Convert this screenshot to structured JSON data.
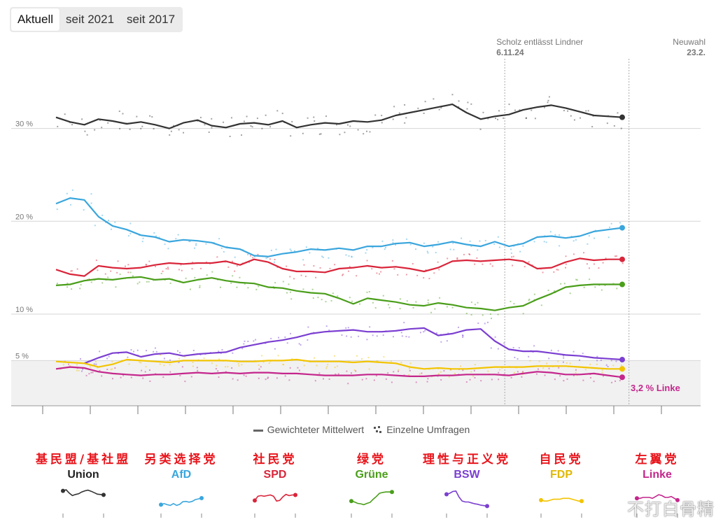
{
  "tabs": [
    {
      "label": "Aktuell",
      "active": true
    },
    {
      "label": "seit 2021",
      "active": false
    },
    {
      "label": "seit 2017",
      "active": false
    }
  ],
  "annotations": {
    "event1_title": "Scholz entlässt Lindner",
    "event1_date": "6.11.24",
    "event2_title": "Neuwahl",
    "event2_date": "23.2."
  },
  "legend": {
    "mean_label": "Gewichteter Mittelwert",
    "polls_label": "Einzelne Umfragen"
  },
  "parties": [
    {
      "key": "union",
      "cn": "基民盟/基社盟",
      "de": "Union",
      "color": "#333333"
    },
    {
      "key": "afd",
      "cn": "另类选择党",
      "de": "AfD",
      "color": "#3aa6dd"
    },
    {
      "key": "spd",
      "cn": "社民党",
      "de": "SPD",
      "color": "#d9253a"
    },
    {
      "key": "gruene",
      "cn": "绿党",
      "de": "Grüne",
      "color": "#4a9e1a"
    },
    {
      "key": "bsw",
      "cn": "理性与正义党",
      "de": "BSW",
      "color": "#7b3fd1"
    },
    {
      "key": "fdp",
      "cn": "自民党",
      "de": "FDP",
      "color": "#f2c400"
    },
    {
      "key": "linke",
      "cn": "左翼党",
      "de": "Linke",
      "color": "#c4268c"
    }
  ],
  "watermark": "不打白骨精",
  "chart_data": {
    "type": "line",
    "x": [
      0,
      1,
      2,
      3,
      4,
      5,
      6,
      7,
      8,
      9,
      10,
      11,
      12,
      13,
      14,
      15,
      16,
      17,
      18,
      19,
      20,
      21,
      22,
      23,
      24,
      25,
      26,
      27,
      28,
      29,
      30,
      31,
      32,
      33,
      34,
      35,
      36,
      37,
      38,
      39,
      40
    ],
    "yticks": [
      {
        "value": 30,
        "label": "30 %"
      },
      {
        "value": 20,
        "label": "20 %"
      },
      {
        "value": 10,
        "label": "10 %"
      },
      {
        "value": 5,
        "label": "5 %"
      }
    ],
    "ylim": [
      0,
      37
    ],
    "threshold_band": {
      "from": 0,
      "to": 5
    },
    "end_label": {
      "text": "3,2 % Linke",
      "series": "linke"
    },
    "events": [
      {
        "at_index": 32,
        "label_key": "event1"
      },
      {
        "at_index": 38.5,
        "label_key": "event2"
      }
    ],
    "series": [
      {
        "name": "Union",
        "color": "#333333",
        "values": [
          31.2,
          30.7,
          30.4,
          31.0,
          30.8,
          30.5,
          30.7,
          30.4,
          30.0,
          30.6,
          30.9,
          30.3,
          30.1,
          30.5,
          30.6,
          30.4,
          30.8,
          30.1,
          30.4,
          30.6,
          30.5,
          30.8,
          30.7,
          30.9,
          31.4,
          31.7,
          32.0,
          32.3,
          32.6,
          31.7,
          31.0,
          31.3,
          31.5,
          32.0,
          32.3,
          32.5,
          32.2,
          31.8,
          31.4,
          31.3,
          31.2
        ]
      },
      {
        "name": "AfD",
        "color": "#3aa6dd",
        "values": [
          21.9,
          22.5,
          22.3,
          20.5,
          19.5,
          19.1,
          18.5,
          18.3,
          17.8,
          18.0,
          17.9,
          17.7,
          17.2,
          17.0,
          16.3,
          16.2,
          16.5,
          16.7,
          17.0,
          16.9,
          17.1,
          16.9,
          17.3,
          17.3,
          17.6,
          17.7,
          17.3,
          17.5,
          17.8,
          17.5,
          17.3,
          17.8,
          17.3,
          17.6,
          18.3,
          18.4,
          18.2,
          18.4,
          18.9,
          19.1,
          19.3
        ]
      },
      {
        "name": "SPD",
        "color": "#d9253a",
        "values": [
          14.8,
          14.3,
          14.1,
          15.2,
          15.0,
          14.9,
          15.0,
          15.3,
          15.5,
          15.4,
          15.5,
          15.5,
          15.7,
          15.3,
          15.9,
          15.6,
          14.9,
          14.6,
          14.6,
          14.5,
          14.9,
          15.0,
          15.2,
          15.0,
          15.1,
          14.9,
          14.6,
          15.0,
          15.7,
          15.8,
          15.7,
          15.8,
          15.9,
          15.7,
          14.9,
          15.0,
          15.6,
          16.0,
          15.8,
          15.9,
          15.9
        ]
      },
      {
        "name": "Grüne",
        "color": "#4a9e1a",
        "values": [
          13.1,
          13.2,
          13.6,
          13.8,
          13.7,
          13.9,
          14.0,
          13.7,
          13.8,
          13.4,
          13.7,
          13.9,
          13.6,
          13.4,
          13.3,
          12.9,
          12.8,
          12.5,
          12.3,
          12.2,
          11.7,
          11.1,
          11.7,
          11.5,
          11.3,
          11.0,
          10.9,
          11.2,
          11.0,
          10.7,
          10.6,
          10.4,
          10.7,
          10.9,
          11.6,
          12.2,
          12.9,
          13.1,
          13.2,
          13.2,
          13.2
        ]
      },
      {
        "name": "BSW",
        "color": "#7b3fd1",
        "values": [
          null,
          null,
          4.7,
          5.3,
          5.8,
          5.9,
          5.4,
          5.7,
          5.8,
          5.5,
          5.7,
          5.8,
          5.9,
          6.4,
          6.7,
          7.0,
          7.2,
          7.5,
          7.9,
          8.1,
          8.2,
          8.3,
          8.1,
          8.1,
          8.2,
          8.4,
          8.5,
          7.7,
          7.9,
          8.3,
          8.4,
          7.1,
          6.2,
          6.0,
          6.0,
          5.8,
          5.6,
          5.5,
          5.3,
          5.2,
          5.1
        ]
      },
      {
        "name": "FDP",
        "color": "#f2c400",
        "values": [
          4.9,
          4.8,
          4.7,
          4.3,
          4.6,
          5.1,
          5.0,
          4.9,
          4.8,
          5.0,
          5.0,
          5.0,
          5.0,
          4.9,
          4.9,
          5.0,
          5.0,
          5.1,
          4.9,
          4.9,
          4.9,
          4.8,
          4.9,
          4.8,
          4.7,
          4.3,
          4.1,
          4.2,
          4.1,
          4.1,
          4.2,
          4.3,
          4.3,
          4.3,
          4.4,
          4.4,
          4.4,
          4.3,
          4.2,
          4.1,
          4.1
        ]
      },
      {
        "name": "Linke",
        "color": "#c4268c",
        "values": [
          4.1,
          4.3,
          4.2,
          3.8,
          3.6,
          3.5,
          3.4,
          3.5,
          3.5,
          3.6,
          3.7,
          3.6,
          3.7,
          3.6,
          3.7,
          3.7,
          3.6,
          3.6,
          3.5,
          3.4,
          3.4,
          3.4,
          3.5,
          3.5,
          3.4,
          3.3,
          3.3,
          3.4,
          3.4,
          3.5,
          3.5,
          3.5,
          3.4,
          3.6,
          3.8,
          3.7,
          3.5,
          3.5,
          3.6,
          3.4,
          3.2
        ]
      }
    ]
  }
}
